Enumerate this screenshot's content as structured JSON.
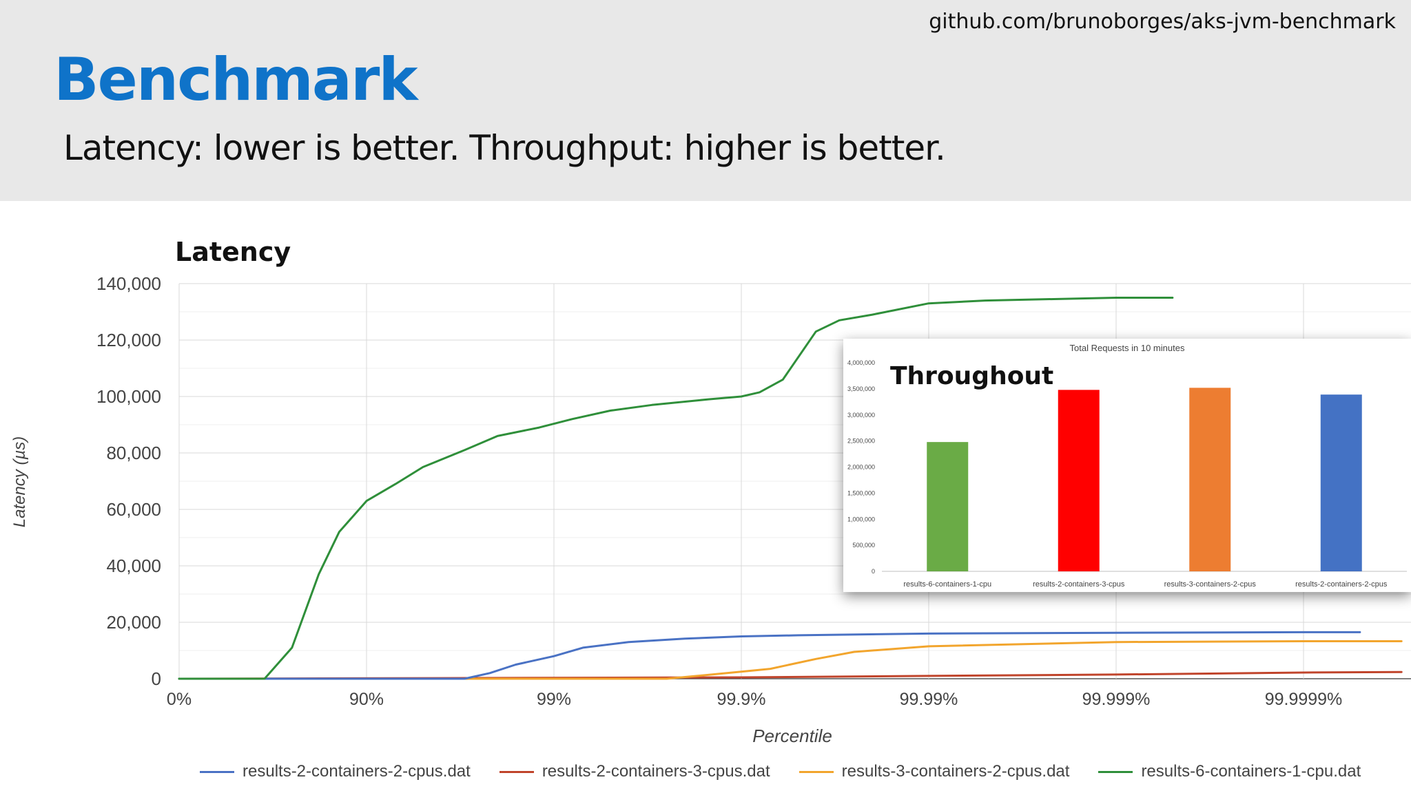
{
  "header": {
    "repo_url": "github.com/brunoborges/aks-jvm-benchmark",
    "title": "Benchmark",
    "subtitle": "Latency: lower is better. Throughput: higher is better."
  },
  "colors": {
    "title_blue": "#0f73c9",
    "series": [
      "#4a72c4",
      "#c0442b",
      "#f2a52d",
      "#2f8f3a"
    ],
    "bars": [
      "#6aab46",
      "#ff0000",
      "#ed7d31",
      "#4472c4"
    ]
  },
  "chart_data": [
    {
      "type": "line",
      "title": "Latency",
      "xlabel": "Percentile",
      "ylabel": "Latency (µs)",
      "x_scale": "log(1/(1-p))",
      "x_ticks": [
        "0%",
        "90%",
        "99%",
        "99.9%",
        "99.99%",
        "99.999%",
        "99.9999%"
      ],
      "x_tick_values": [
        0,
        90,
        99,
        99.9,
        99.99,
        99.999,
        99.9999
      ],
      "y_ticks": [
        "0",
        "20,000",
        "40,000",
        "60,000",
        "80,000",
        "100,000",
        "120,000",
        "140,000"
      ],
      "ylim": [
        0,
        140000
      ],
      "grid": true,
      "legend_position": "bottom",
      "series": [
        {
          "name": "results-2-containers-2-cpus.dat",
          "x": [
            0,
            97.0,
            97.8,
            98.4,
            99.0,
            99.3,
            99.6,
            99.8,
            99.9,
            99.95,
            99.99,
            99.999,
            99.9999,
            99.99995
          ],
          "y": [
            0,
            0,
            2000,
            5000,
            8000,
            11000,
            13000,
            14200,
            15000,
            15400,
            16000,
            16300,
            16500,
            16500
          ]
        },
        {
          "name": "results-2-containers-3-cpus.dat",
          "x": [
            0,
            99.9,
            99.99,
            99.999,
            99.9999,
            99.99997
          ],
          "y": [
            0,
            500,
            1000,
            1500,
            2200,
            2400
          ]
        },
        {
          "name": "results-3-containers-2-cpus.dat",
          "x": [
            0,
            99.75,
            99.9,
            99.93,
            99.96,
            99.975,
            99.99,
            99.999,
            99.9999,
            99.99997
          ],
          "y": [
            0,
            0,
            2500,
            3500,
            7000,
            9500,
            11500,
            13000,
            13300,
            13300
          ]
        },
        {
          "name": "results-6-containers-1-cpu.dat",
          "x": [
            0,
            65,
            75,
            82,
            86,
            90,
            93,
            95,
            97,
            98,
            98.8,
            99.2,
            99.5,
            99.7,
            99.85,
            99.9,
            99.92,
            99.94,
            99.96,
            99.97,
            99.98,
            99.99,
            99.995,
            99.999,
            99.9995
          ],
          "y": [
            0,
            0,
            11000,
            37000,
            52000,
            63000,
            69000,
            75000,
            81000,
            86000,
            89000,
            92000,
            95000,
            97000,
            99000,
            100000,
            101500,
            106000,
            123000,
            127000,
            129000,
            133000,
            134000,
            135000,
            135000
          ]
        }
      ]
    },
    {
      "type": "bar",
      "title": "Total Requests in 10 minutes",
      "overlay_label": "Throughout",
      "categories": [
        "results-6-containers-1-cpu",
        "results-2-containers-3-cpus",
        "results-3-containers-2-cpus",
        "results-2-containers-2-cpus"
      ],
      "values": [
        2480000,
        3480000,
        3520000,
        3390000
      ],
      "ylim": [
        0,
        4000000
      ],
      "y_ticks": [
        "0",
        "500,000",
        "1,000,000",
        "1,500,000",
        "2,000,000",
        "2,500,000",
        "3,000,000",
        "3,500,000",
        "4,000,000"
      ]
    }
  ]
}
